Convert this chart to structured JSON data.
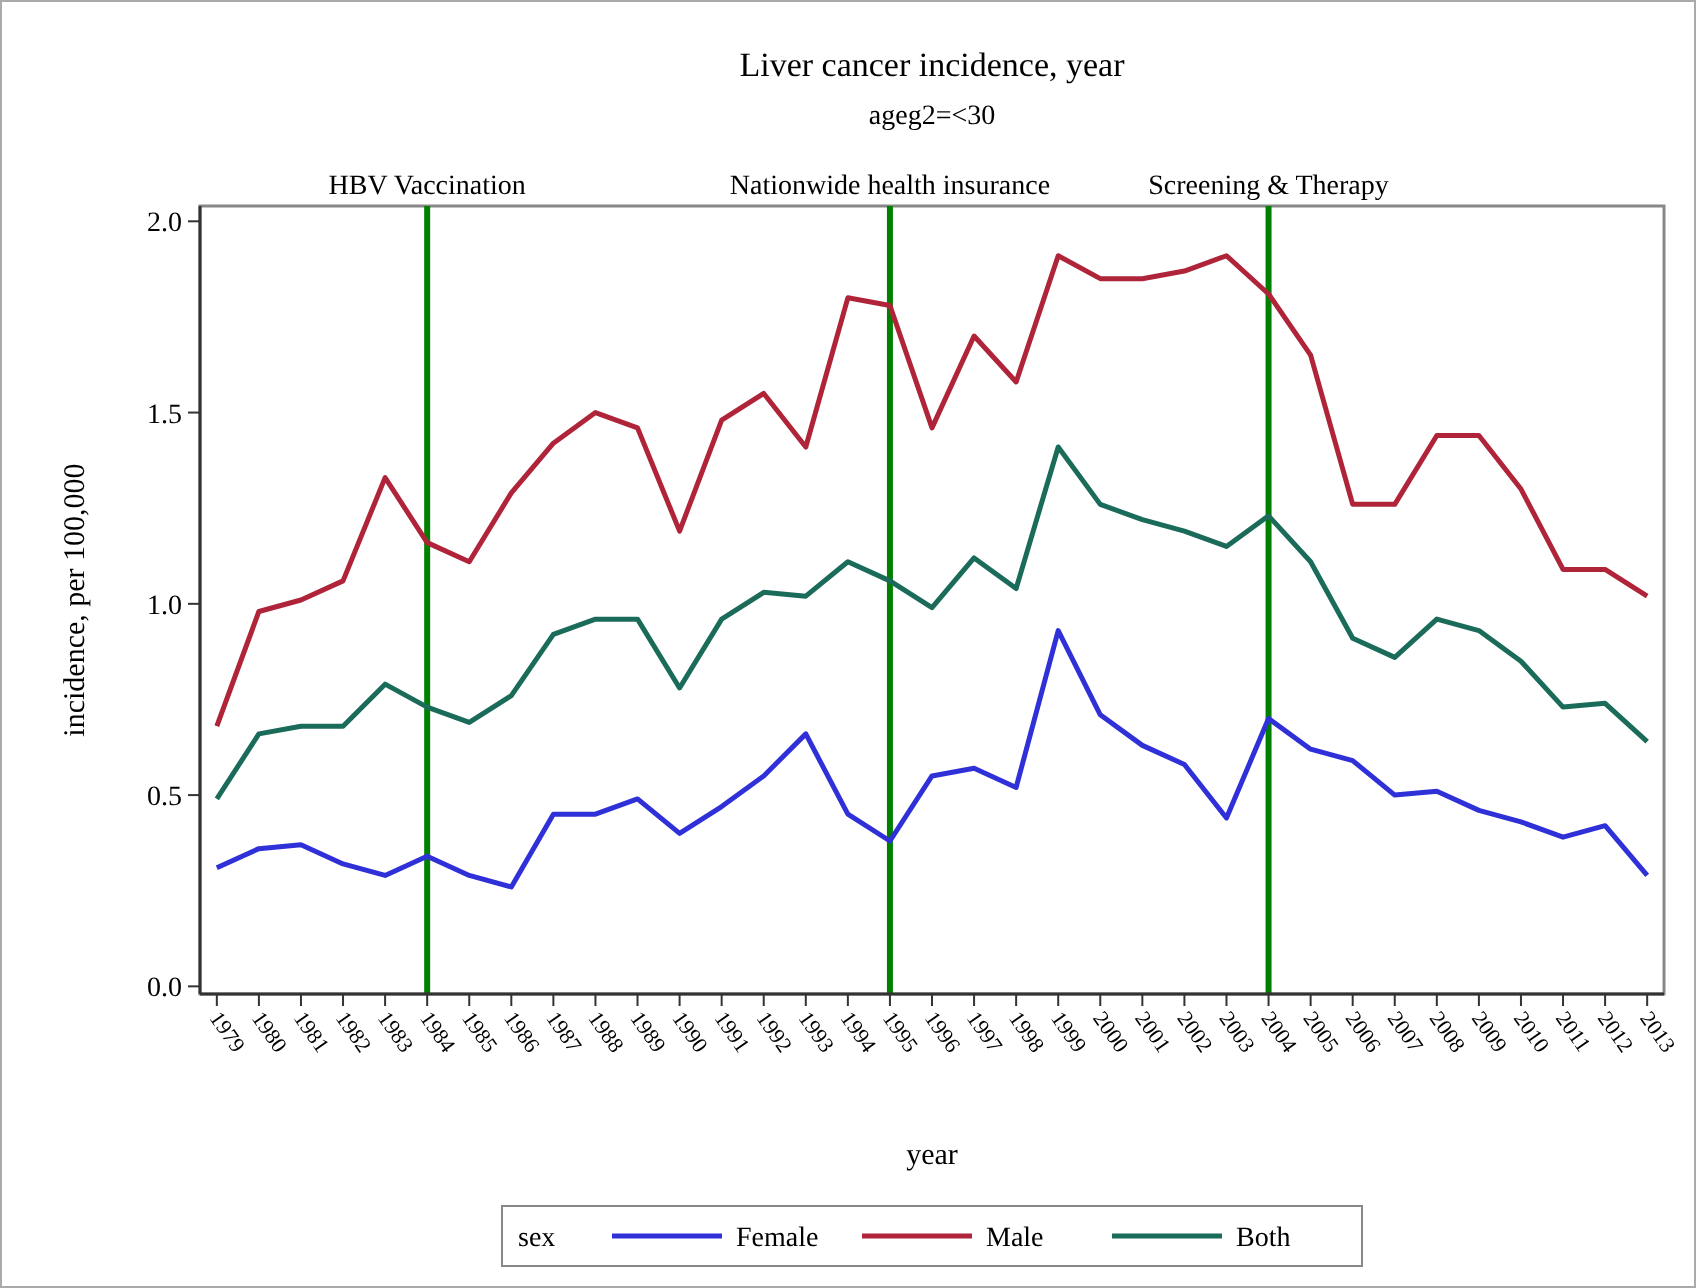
{
  "chart_data": {
    "type": "line",
    "title": "Liver cancer incidence, year",
    "subtitle": "ageg2=<30",
    "xlabel": "year",
    "ylabel": "incidence, per 100,000",
    "legend_title": "sex",
    "x": [
      1979,
      1980,
      1981,
      1982,
      1983,
      1984,
      1985,
      1986,
      1987,
      1988,
      1989,
      1990,
      1991,
      1992,
      1993,
      1994,
      1995,
      1996,
      1997,
      1998,
      1999,
      2000,
      2001,
      2002,
      2003,
      2004,
      2005,
      2006,
      2007,
      2008,
      2009,
      2010,
      2011,
      2012,
      2013
    ],
    "series": [
      {
        "name": "Female",
        "color": "#3030d8",
        "values": [
          0.31,
          0.36,
          0.37,
          0.32,
          0.29,
          0.34,
          0.29,
          0.26,
          0.45,
          0.45,
          0.49,
          0.4,
          0.47,
          0.55,
          0.66,
          0.45,
          0.38,
          0.55,
          0.57,
          0.52,
          0.93,
          0.71,
          0.63,
          0.58,
          0.44,
          0.7,
          0.62,
          0.59,
          0.5,
          0.51,
          0.46,
          0.43,
          0.39,
          0.42,
          0.29
        ]
      },
      {
        "name": "Male",
        "color": "#b0243a",
        "values": [
          0.68,
          0.98,
          1.01,
          1.06,
          1.33,
          1.16,
          1.11,
          1.29,
          1.42,
          1.5,
          1.46,
          1.19,
          1.48,
          1.55,
          1.41,
          1.8,
          1.78,
          1.46,
          1.7,
          1.58,
          1.91,
          1.85,
          1.85,
          1.87,
          1.91,
          1.81,
          1.65,
          1.26,
          1.26,
          1.44,
          1.44,
          1.3,
          1.09,
          1.09,
          1.02
        ]
      },
      {
        "name": "Both",
        "color": "#1a6b5a",
        "values": [
          0.49,
          0.66,
          0.68,
          0.68,
          0.79,
          0.73,
          0.69,
          0.76,
          0.92,
          0.96,
          0.96,
          0.78,
          0.96,
          1.03,
          1.02,
          1.11,
          1.06,
          0.99,
          1.12,
          1.04,
          1.41,
          1.26,
          1.22,
          1.19,
          1.15,
          1.23,
          1.11,
          0.91,
          0.86,
          0.96,
          0.93,
          0.85,
          0.73,
          0.74,
          0.64
        ]
      }
    ],
    "xlim": [
      1978.6,
      2013.4
    ],
    "xticks": [
      1979,
      1980,
      1981,
      1982,
      1983,
      1984,
      1985,
      1986,
      1987,
      1988,
      1989,
      1990,
      1991,
      1992,
      1993,
      1994,
      1995,
      1996,
      1997,
      1998,
      1999,
      2000,
      2001,
      2002,
      2003,
      2004,
      2005,
      2006,
      2007,
      2008,
      2009,
      2010,
      2011,
      2012,
      2013
    ],
    "ylim": [
      -0.02,
      2.04
    ],
    "yticks": [
      {
        "value": 0,
        "label": "0.0"
      },
      {
        "value": 0.5,
        "label": "0.5"
      },
      {
        "value": 1,
        "label": "1.0"
      },
      {
        "value": 1.5,
        "label": "1.5"
      },
      {
        "value": 2,
        "label": "2.0"
      }
    ],
    "ref_lines": [
      {
        "axis": "x",
        "value": 1984,
        "label": "HBV Vaccination",
        "color": "#008000"
      },
      {
        "axis": "x",
        "value": 1995,
        "label": "Nationwide health insurance",
        "color": "#008000"
      },
      {
        "axis": "x",
        "value": 2004,
        "label": "Screening & Therapy",
        "color": "#008000"
      }
    ],
    "grid": false,
    "legend": "bottom",
    "marker": "none",
    "line_style": "solid"
  }
}
